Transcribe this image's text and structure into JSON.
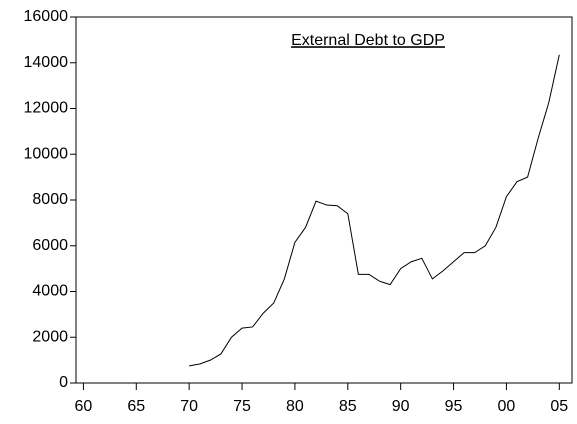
{
  "chart_data": {
    "type": "line",
    "title": "External Debt to GDP",
    "x": [
      1970,
      1971,
      1972,
      1973,
      1974,
      1975,
      1976,
      1977,
      1978,
      1979,
      1980,
      1981,
      1982,
      1983,
      1984,
      1985,
      1986,
      1987,
      1988,
      1989,
      1990,
      1991,
      1992,
      1993,
      1994,
      1995,
      1996,
      1997,
      1998,
      1999,
      2000,
      2001,
      2002,
      2003,
      2004,
      2005
    ],
    "series": [
      {
        "name": "External Debt to GDP",
        "color": "#000000",
        "values": [
          750,
          830,
          1000,
          1270,
          2000,
          2400,
          2450,
          3050,
          3500,
          4550,
          6150,
          6800,
          7950,
          7780,
          7750,
          7400,
          4750,
          4750,
          4450,
          4300,
          5000,
          5300,
          5450,
          4550,
          4900,
          5300,
          5700,
          5700,
          6000,
          6800,
          8150,
          8800,
          9000,
          10700,
          12250,
          14350
        ]
      }
    ],
    "xlim": [
      1959.3,
      2006.2
    ],
    "xticks": [
      {
        "value": 1960,
        "label": "60"
      },
      {
        "value": 1965,
        "label": "65"
      },
      {
        "value": 1970,
        "label": "70"
      },
      {
        "value": 1975,
        "label": "75"
      },
      {
        "value": 1980,
        "label": "80"
      },
      {
        "value": 1985,
        "label": "85"
      },
      {
        "value": 1990,
        "label": "90"
      },
      {
        "value": 1995,
        "label": "95"
      },
      {
        "value": 2000,
        "label": "00"
      },
      {
        "value": 2005,
        "label": "05"
      }
    ],
    "ylim": [
      0,
      16000
    ],
    "yticks": [
      0,
      2000,
      4000,
      6000,
      8000,
      10000,
      12000,
      14000,
      16000
    ]
  }
}
